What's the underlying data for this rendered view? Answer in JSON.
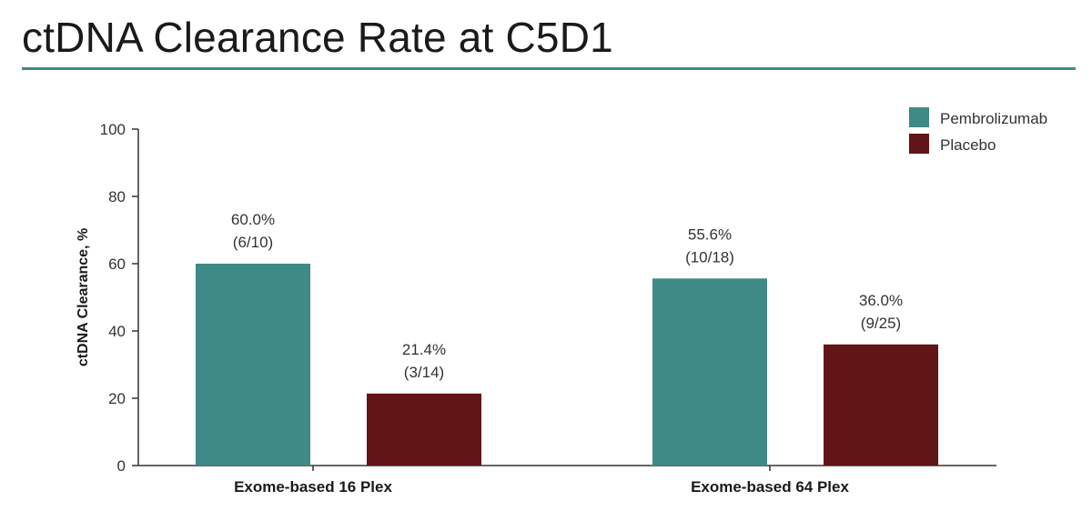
{
  "slide": {
    "title": "ctDNA Clearance Rate at C5D1"
  },
  "colors": {
    "accent": "#3e8a86",
    "pembrolizumab": "#3e8a86",
    "placebo": "#621516"
  },
  "chart_data": {
    "type": "bar",
    "title": "",
    "xlabel": "",
    "ylabel": "ctDNA Clearance, %",
    "ylim": [
      0,
      100
    ],
    "yticks": [
      0,
      20,
      40,
      60,
      80,
      100
    ],
    "categories": [
      "Exome-based 16 Plex",
      "Exome-based 64 Plex"
    ],
    "series": [
      {
        "name": "Pembrolizumab",
        "color": "#3e8a86",
        "values": [
          60.0,
          55.6
        ],
        "labels": [
          "60.0%",
          "55.6%"
        ],
        "fractions": [
          "(6/10)",
          "(10/18)"
        ]
      },
      {
        "name": "Placebo",
        "color": "#621516",
        "values": [
          21.4,
          36.0
        ],
        "labels": [
          "21.4%",
          "36.0%"
        ],
        "fractions": [
          "(3/14)",
          "(9/25)"
        ]
      }
    ],
    "legend": "top-right",
    "grid": false
  }
}
